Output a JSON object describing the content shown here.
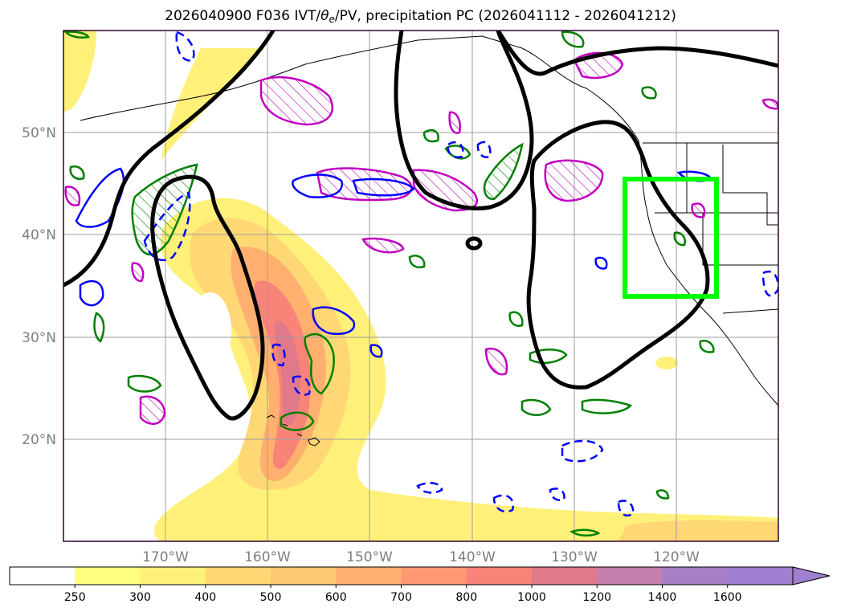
{
  "title": {
    "prefix": "2026040900 F036 IVT/",
    "theta": "θ",
    "theta_sub": "e",
    "suffix": "/PV, precipitation PC (2026041112 - 2026041212)"
  },
  "map": {
    "lon_range": [
      -180,
      -110
    ],
    "lat_range": [
      10,
      60
    ],
    "lon_ticks": [
      {
        "value": -170,
        "label": "170°W"
      },
      {
        "value": -160,
        "label": "160°W"
      },
      {
        "value": -150,
        "label": "150°W"
      },
      {
        "value": -140,
        "label": "140°W"
      },
      {
        "value": -130,
        "label": "130°W"
      },
      {
        "value": -120,
        "label": "120°W"
      }
    ],
    "lat_ticks": [
      {
        "value": 20,
        "label": "20°N"
      },
      {
        "value": 30,
        "label": "30°N"
      },
      {
        "value": 40,
        "label": "40°N"
      },
      {
        "value": 50,
        "label": "50°N"
      }
    ],
    "gridlines": true,
    "highlight_box": {
      "lon_min": -125,
      "lon_max": -116,
      "lat_min": 34,
      "lat_max": 45.5,
      "color": "#00ff00"
    },
    "colors": {
      "ivt_low": "#fff07a",
      "ivt_mid": "#ffb673",
      "ivt_high": "#f07878",
      "pv_contour": "#000000",
      "theta_pos": "#008000",
      "theta_neg": "#0000ff",
      "precip": "#c000c0"
    }
  },
  "colorbar": {
    "levels": [
      "250",
      "300",
      "400",
      "500",
      "600",
      "700",
      "800",
      "1000",
      "1200",
      "1400",
      "1600"
    ],
    "colors": [
      "#ffffff",
      "#ffff7f",
      "#fff17a",
      "#ffd774",
      "#ffc873",
      "#ffb06f",
      "#ff9873",
      "#f88379",
      "#e07a8a",
      "#c47fae",
      "#a87fc7",
      "#9f7fd0"
    ],
    "extend": "max"
  }
}
